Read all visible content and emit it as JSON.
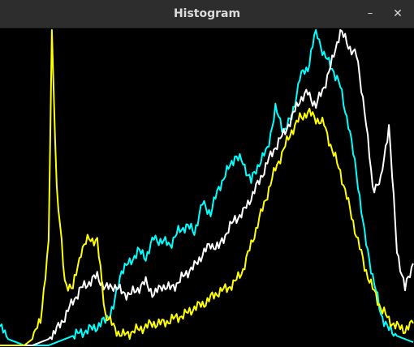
{
  "window": {
    "title": "Histogram",
    "minimize_icon": "–",
    "close_icon": "✕"
  },
  "chart_data": {
    "type": "line",
    "title": "",
    "xlabel": "",
    "ylabel": "",
    "xlim": [
      0,
      255
    ],
    "ylim": [
      0,
      1
    ],
    "grid": false,
    "background": "#000000",
    "series": [
      {
        "color": "#00ffff",
        "x": [
          0,
          5,
          10,
          15,
          20,
          25,
          30,
          35,
          40,
          45,
          50,
          55,
          60,
          65,
          70,
          75,
          80,
          85,
          90,
          95,
          100,
          105,
          110,
          115,
          120,
          125,
          130,
          135,
          140,
          145,
          150,
          155,
          160,
          165,
          170,
          175,
          180,
          185,
          190,
          195,
          200,
          205,
          210,
          215,
          220,
          225,
          230,
          235,
          240,
          245,
          250,
          255
        ],
        "y": [
          0.06,
          0.02,
          0.01,
          0.0,
          0.0,
          0.0,
          0.0,
          0.01,
          0.02,
          0.03,
          0.04,
          0.05,
          0.06,
          0.08,
          0.12,
          0.24,
          0.26,
          0.3,
          0.28,
          0.34,
          0.33,
          0.32,
          0.36,
          0.38,
          0.36,
          0.45,
          0.42,
          0.5,
          0.55,
          0.6,
          0.58,
          0.52,
          0.58,
          0.62,
          0.75,
          0.68,
          0.72,
          0.85,
          0.88,
          1.0,
          0.92,
          0.88,
          0.82,
          0.7,
          0.55,
          0.35,
          0.22,
          0.1,
          0.05,
          0.03,
          0.02,
          0.01
        ]
      },
      {
        "color": "#ffffff",
        "x": [
          0,
          5,
          10,
          15,
          20,
          25,
          30,
          35,
          40,
          45,
          50,
          55,
          60,
          65,
          70,
          75,
          80,
          85,
          90,
          95,
          100,
          105,
          110,
          115,
          120,
          125,
          130,
          135,
          140,
          145,
          150,
          155,
          160,
          165,
          170,
          175,
          180,
          185,
          190,
          195,
          200,
          205,
          210,
          215,
          220,
          225,
          230,
          235,
          240,
          245,
          250,
          255
        ],
        "y": [
          0.0,
          0.0,
          0.0,
          0.0,
          0.0,
          0.01,
          0.02,
          0.05,
          0.09,
          0.14,
          0.18,
          0.2,
          0.22,
          0.18,
          0.19,
          0.17,
          0.16,
          0.18,
          0.2,
          0.16,
          0.19,
          0.18,
          0.2,
          0.23,
          0.25,
          0.29,
          0.32,
          0.31,
          0.36,
          0.4,
          0.42,
          0.47,
          0.52,
          0.58,
          0.63,
          0.67,
          0.72,
          0.78,
          0.8,
          0.76,
          0.82,
          0.9,
          1.0,
          0.95,
          0.92,
          0.75,
          0.5,
          0.52,
          0.7,
          0.3,
          0.18,
          0.26
        ]
      },
      {
        "color": "#ffff00",
        "x": [
          0,
          5,
          10,
          15,
          20,
          25,
          30,
          32,
          35,
          40,
          45,
          50,
          55,
          60,
          65,
          70,
          75,
          80,
          85,
          90,
          95,
          100,
          105,
          110,
          115,
          120,
          125,
          130,
          135,
          140,
          145,
          150,
          155,
          160,
          165,
          170,
          175,
          180,
          185,
          190,
          195,
          200,
          205,
          210,
          215,
          220,
          225,
          230,
          235,
          240,
          245,
          250,
          255
        ],
        "y": [
          0.0,
          0.0,
          0.0,
          0.0,
          0.02,
          0.08,
          0.32,
          1.0,
          0.5,
          0.2,
          0.18,
          0.3,
          0.34,
          0.33,
          0.1,
          0.06,
          0.03,
          0.04,
          0.05,
          0.06,
          0.07,
          0.07,
          0.08,
          0.09,
          0.1,
          0.12,
          0.13,
          0.15,
          0.17,
          0.18,
          0.2,
          0.24,
          0.32,
          0.4,
          0.48,
          0.56,
          0.62,
          0.68,
          0.72,
          0.74,
          0.72,
          0.7,
          0.62,
          0.55,
          0.45,
          0.35,
          0.25,
          0.18,
          0.12,
          0.08,
          0.06,
          0.05,
          0.07
        ]
      }
    ]
  }
}
